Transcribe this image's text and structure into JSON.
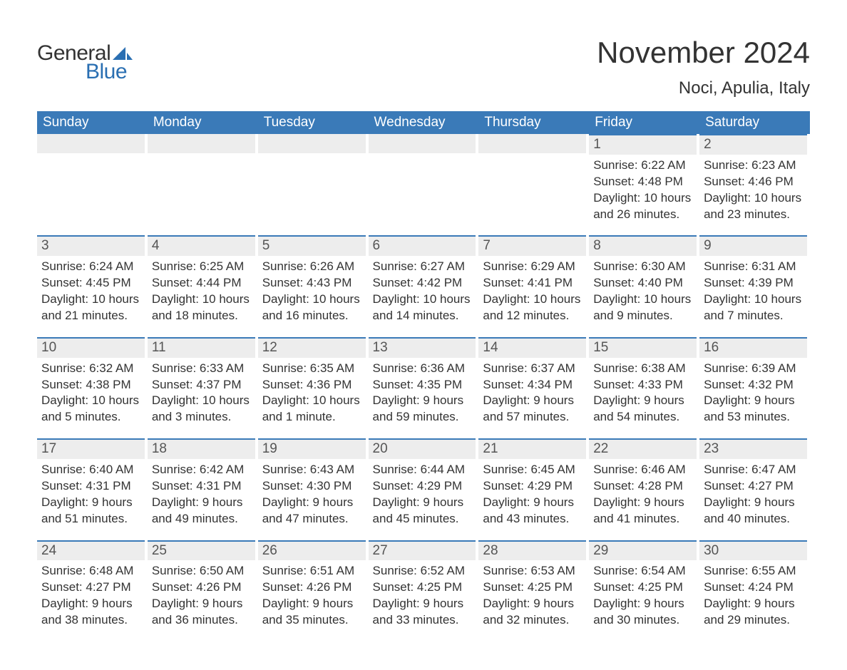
{
  "logo": {
    "word1": "General",
    "word2": "Blue",
    "sail_color": "#2a6fb2",
    "text_color": "#333333"
  },
  "title": "November 2024",
  "location": "Noci, Apulia, Italy",
  "colors": {
    "header_bg": "#3a7ab8",
    "header_text": "#ffffff",
    "daynum_bg": "#ededed",
    "daynum_border": "#3a7ab8",
    "body_text": "#333333",
    "daynum_text": "#555555",
    "page_bg": "#ffffff"
  },
  "weekdays": [
    "Sunday",
    "Monday",
    "Tuesday",
    "Wednesday",
    "Thursday",
    "Friday",
    "Saturday"
  ],
  "weeks": [
    [
      null,
      null,
      null,
      null,
      null,
      {
        "day": "1",
        "sunrise": "Sunrise: 6:22 AM",
        "sunset": "Sunset: 4:48 PM",
        "daylight1": "Daylight: 10 hours",
        "daylight2": "and 26 minutes."
      },
      {
        "day": "2",
        "sunrise": "Sunrise: 6:23 AM",
        "sunset": "Sunset: 4:46 PM",
        "daylight1": "Daylight: 10 hours",
        "daylight2": "and 23 minutes."
      }
    ],
    [
      {
        "day": "3",
        "sunrise": "Sunrise: 6:24 AM",
        "sunset": "Sunset: 4:45 PM",
        "daylight1": "Daylight: 10 hours",
        "daylight2": "and 21 minutes."
      },
      {
        "day": "4",
        "sunrise": "Sunrise: 6:25 AM",
        "sunset": "Sunset: 4:44 PM",
        "daylight1": "Daylight: 10 hours",
        "daylight2": "and 18 minutes."
      },
      {
        "day": "5",
        "sunrise": "Sunrise: 6:26 AM",
        "sunset": "Sunset: 4:43 PM",
        "daylight1": "Daylight: 10 hours",
        "daylight2": "and 16 minutes."
      },
      {
        "day": "6",
        "sunrise": "Sunrise: 6:27 AM",
        "sunset": "Sunset: 4:42 PM",
        "daylight1": "Daylight: 10 hours",
        "daylight2": "and 14 minutes."
      },
      {
        "day": "7",
        "sunrise": "Sunrise: 6:29 AM",
        "sunset": "Sunset: 4:41 PM",
        "daylight1": "Daylight: 10 hours",
        "daylight2": "and 12 minutes."
      },
      {
        "day": "8",
        "sunrise": "Sunrise: 6:30 AM",
        "sunset": "Sunset: 4:40 PM",
        "daylight1": "Daylight: 10 hours",
        "daylight2": "and 9 minutes."
      },
      {
        "day": "9",
        "sunrise": "Sunrise: 6:31 AM",
        "sunset": "Sunset: 4:39 PM",
        "daylight1": "Daylight: 10 hours",
        "daylight2": "and 7 minutes."
      }
    ],
    [
      {
        "day": "10",
        "sunrise": "Sunrise: 6:32 AM",
        "sunset": "Sunset: 4:38 PM",
        "daylight1": "Daylight: 10 hours",
        "daylight2": "and 5 minutes."
      },
      {
        "day": "11",
        "sunrise": "Sunrise: 6:33 AM",
        "sunset": "Sunset: 4:37 PM",
        "daylight1": "Daylight: 10 hours",
        "daylight2": "and 3 minutes."
      },
      {
        "day": "12",
        "sunrise": "Sunrise: 6:35 AM",
        "sunset": "Sunset: 4:36 PM",
        "daylight1": "Daylight: 10 hours",
        "daylight2": "and 1 minute."
      },
      {
        "day": "13",
        "sunrise": "Sunrise: 6:36 AM",
        "sunset": "Sunset: 4:35 PM",
        "daylight1": "Daylight: 9 hours",
        "daylight2": "and 59 minutes."
      },
      {
        "day": "14",
        "sunrise": "Sunrise: 6:37 AM",
        "sunset": "Sunset: 4:34 PM",
        "daylight1": "Daylight: 9 hours",
        "daylight2": "and 57 minutes."
      },
      {
        "day": "15",
        "sunrise": "Sunrise: 6:38 AM",
        "sunset": "Sunset: 4:33 PM",
        "daylight1": "Daylight: 9 hours",
        "daylight2": "and 54 minutes."
      },
      {
        "day": "16",
        "sunrise": "Sunrise: 6:39 AM",
        "sunset": "Sunset: 4:32 PM",
        "daylight1": "Daylight: 9 hours",
        "daylight2": "and 53 minutes."
      }
    ],
    [
      {
        "day": "17",
        "sunrise": "Sunrise: 6:40 AM",
        "sunset": "Sunset: 4:31 PM",
        "daylight1": "Daylight: 9 hours",
        "daylight2": "and 51 minutes."
      },
      {
        "day": "18",
        "sunrise": "Sunrise: 6:42 AM",
        "sunset": "Sunset: 4:31 PM",
        "daylight1": "Daylight: 9 hours",
        "daylight2": "and 49 minutes."
      },
      {
        "day": "19",
        "sunrise": "Sunrise: 6:43 AM",
        "sunset": "Sunset: 4:30 PM",
        "daylight1": "Daylight: 9 hours",
        "daylight2": "and 47 minutes."
      },
      {
        "day": "20",
        "sunrise": "Sunrise: 6:44 AM",
        "sunset": "Sunset: 4:29 PM",
        "daylight1": "Daylight: 9 hours",
        "daylight2": "and 45 minutes."
      },
      {
        "day": "21",
        "sunrise": "Sunrise: 6:45 AM",
        "sunset": "Sunset: 4:29 PM",
        "daylight1": "Daylight: 9 hours",
        "daylight2": "and 43 minutes."
      },
      {
        "day": "22",
        "sunrise": "Sunrise: 6:46 AM",
        "sunset": "Sunset: 4:28 PM",
        "daylight1": "Daylight: 9 hours",
        "daylight2": "and 41 minutes."
      },
      {
        "day": "23",
        "sunrise": "Sunrise: 6:47 AM",
        "sunset": "Sunset: 4:27 PM",
        "daylight1": "Daylight: 9 hours",
        "daylight2": "and 40 minutes."
      }
    ],
    [
      {
        "day": "24",
        "sunrise": "Sunrise: 6:48 AM",
        "sunset": "Sunset: 4:27 PM",
        "daylight1": "Daylight: 9 hours",
        "daylight2": "and 38 minutes."
      },
      {
        "day": "25",
        "sunrise": "Sunrise: 6:50 AM",
        "sunset": "Sunset: 4:26 PM",
        "daylight1": "Daylight: 9 hours",
        "daylight2": "and 36 minutes."
      },
      {
        "day": "26",
        "sunrise": "Sunrise: 6:51 AM",
        "sunset": "Sunset: 4:26 PM",
        "daylight1": "Daylight: 9 hours",
        "daylight2": "and 35 minutes."
      },
      {
        "day": "27",
        "sunrise": "Sunrise: 6:52 AM",
        "sunset": "Sunset: 4:25 PM",
        "daylight1": "Daylight: 9 hours",
        "daylight2": "and 33 minutes."
      },
      {
        "day": "28",
        "sunrise": "Sunrise: 6:53 AM",
        "sunset": "Sunset: 4:25 PM",
        "daylight1": "Daylight: 9 hours",
        "daylight2": "and 32 minutes."
      },
      {
        "day": "29",
        "sunrise": "Sunrise: 6:54 AM",
        "sunset": "Sunset: 4:25 PM",
        "daylight1": "Daylight: 9 hours",
        "daylight2": "and 30 minutes."
      },
      {
        "day": "30",
        "sunrise": "Sunrise: 6:55 AM",
        "sunset": "Sunset: 4:24 PM",
        "daylight1": "Daylight: 9 hours",
        "daylight2": "and 29 minutes."
      }
    ]
  ]
}
